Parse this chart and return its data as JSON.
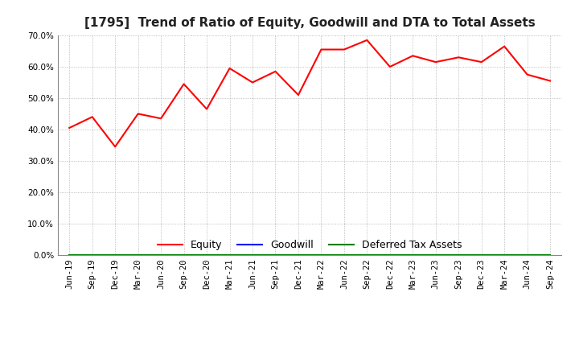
{
  "title": "[1795]  Trend of Ratio of Equity, Goodwill and DTA to Total Assets",
  "labels": [
    "Jun-19",
    "Sep-19",
    "Dec-19",
    "Mar-20",
    "Jun-20",
    "Sep-20",
    "Dec-20",
    "Mar-21",
    "Jun-21",
    "Sep-21",
    "Dec-21",
    "Mar-22",
    "Jun-22",
    "Sep-22",
    "Dec-22",
    "Mar-23",
    "Jun-23",
    "Sep-23",
    "Dec-23",
    "Mar-24",
    "Jun-24",
    "Sep-24"
  ],
  "equity": [
    0.405,
    0.44,
    0.345,
    0.45,
    0.435,
    0.545,
    0.465,
    0.595,
    0.55,
    0.585,
    0.51,
    0.655,
    0.655,
    0.685,
    0.6,
    0.635,
    0.615,
    0.63,
    0.615,
    0.665,
    0.575,
    0.555
  ],
  "goodwill": [
    0.0,
    0.0,
    0.0,
    0.0,
    0.0,
    0.0,
    0.0,
    0.0,
    0.0,
    0.0,
    0.0,
    0.0,
    0.0,
    0.0,
    0.0,
    0.0,
    0.0,
    0.0,
    0.0,
    0.0,
    0.0,
    0.0
  ],
  "dta": [
    0.0,
    0.0,
    0.0,
    0.0,
    0.0,
    0.0,
    0.0,
    0.0,
    0.0,
    0.0,
    0.0,
    0.0,
    0.0,
    0.0,
    0.0,
    0.0,
    0.0,
    0.0,
    0.0,
    0.0,
    0.0,
    0.0
  ],
  "equity_color": "#FF0000",
  "goodwill_color": "#0000FF",
  "dta_color": "#008000",
  "ylim": [
    0.0,
    0.7
  ],
  "yticks": [
    0.0,
    0.1,
    0.2,
    0.3,
    0.4,
    0.5,
    0.6,
    0.7
  ],
  "background_color": "#FFFFFF",
  "plot_bg_color": "#FFFFFF",
  "grid_color": "#AAAAAA",
  "title_fontsize": 11,
  "tick_fontsize": 7.5,
  "legend_labels": [
    "Equity",
    "Goodwill",
    "Deferred Tax Assets"
  ]
}
